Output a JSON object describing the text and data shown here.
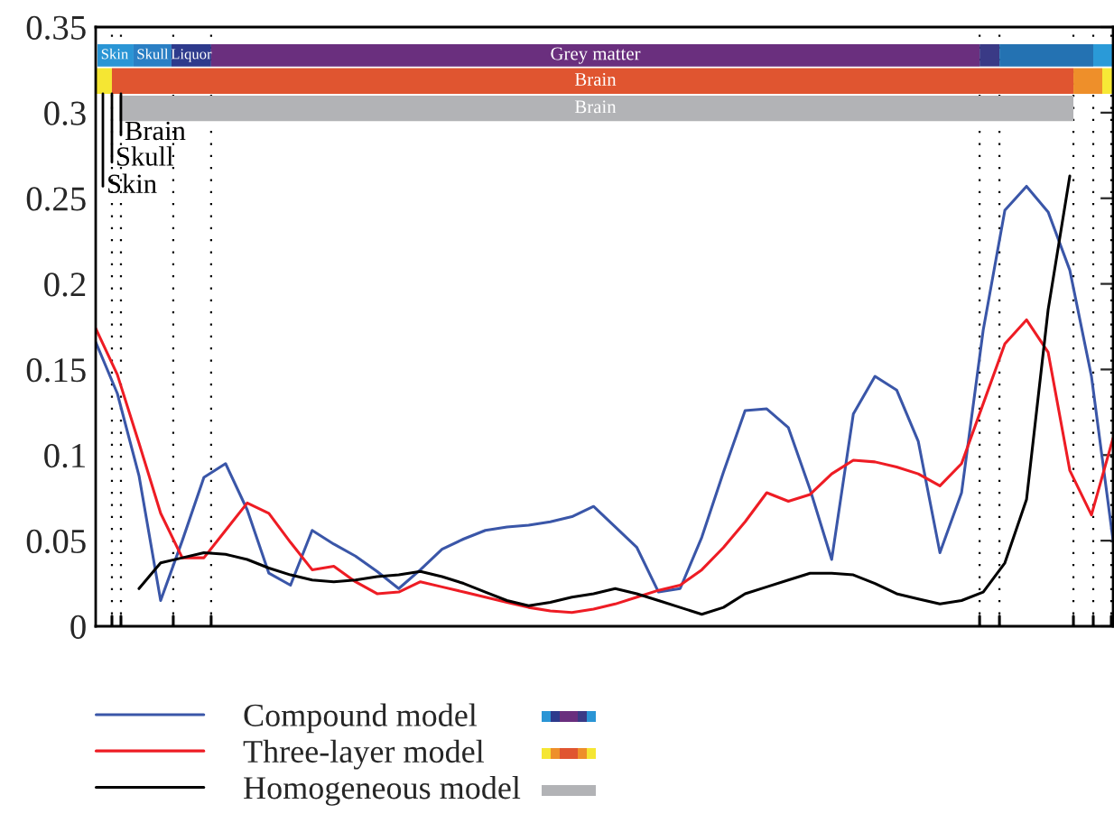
{
  "chart_data": {
    "type": "line",
    "categories": [
      null,
      null,
      null,
      null,
      null,
      null,
      null,
      null,
      null,
      null,
      null,
      null,
      null,
      null,
      null,
      null,
      null,
      null,
      null,
      null,
      null,
      null,
      null,
      null,
      null,
      null,
      null,
      null,
      null,
      null,
      null,
      null,
      null,
      null,
      null,
      null,
      null,
      null,
      null,
      null,
      null,
      null,
      null,
      null,
      null,
      null,
      null,
      null
    ],
    "series": [
      {
        "name": "Compound model",
        "color": "#3a56a8",
        "values": [
          0.166,
          0.136,
          0.088,
          0.015,
          0.05,
          0.087,
          0.095,
          0.068,
          0.031,
          0.024,
          0.056,
          0.048,
          0.041,
          0.032,
          0.022,
          0.033,
          0.045,
          0.051,
          0.056,
          0.058,
          0.059,
          0.061,
          0.064,
          0.07,
          0.058,
          0.046,
          0.02,
          0.022,
          0.052,
          0.09,
          0.126,
          0.127,
          0.116,
          0.08,
          0.039,
          0.124,
          0.146,
          0.138,
          0.108,
          0.043,
          0.078,
          0.173,
          0.243,
          0.257,
          0.242,
          0.208,
          0.146,
          0.05
        ]
      },
      {
        "name": "Three-layer model",
        "color": "#ee1c24",
        "values": [
          0.174,
          0.147,
          0.107,
          0.066,
          0.04,
          0.04,
          0.056,
          0.072,
          0.066,
          0.049,
          0.033,
          0.035,
          0.026,
          0.019,
          0.02,
          0.026,
          0.023,
          0.02,
          0.017,
          0.014,
          0.011,
          0.009,
          0.008,
          0.01,
          0.013,
          0.017,
          0.021,
          0.024,
          0.033,
          0.046,
          0.061,
          0.078,
          0.073,
          0.077,
          0.089,
          0.097,
          0.096,
          0.093,
          0.089,
          0.082,
          0.095,
          0.13,
          0.165,
          0.179,
          0.16,
          0.091,
          0.065,
          0.11
        ]
      },
      {
        "name": "Homogeneous model",
        "color": "#000000",
        "values": [
          null,
          null,
          0.022,
          0.037,
          0.04,
          0.043,
          0.042,
          0.039,
          0.034,
          0.03,
          0.027,
          0.026,
          0.027,
          0.029,
          0.03,
          0.032,
          0.029,
          0.025,
          0.02,
          0.015,
          0.012,
          0.014,
          0.017,
          0.019,
          0.022,
          0.019,
          0.015,
          0.011,
          0.007,
          0.011,
          0.019,
          0.023,
          0.027,
          0.031,
          0.031,
          0.03,
          0.025,
          0.019,
          0.016,
          0.013,
          0.015,
          0.02,
          0.037,
          0.074,
          0.185,
          0.263,
          null,
          null
        ]
      }
    ],
    "ylim": [
      0,
      0.35
    ],
    "yticks": [
      0,
      0.05,
      0.1,
      0.15,
      0.2,
      0.25,
      0.3,
      0.35
    ],
    "annotations": [
      "Skin",
      "Skull",
      "Liquor",
      "Grey matter",
      "Brain",
      "Brain",
      "Brain",
      "Skull",
      "Skin"
    ],
    "legend": "bottom",
    "grid": "x",
    "line_style": "solid",
    "marker": "none"
  }
}
